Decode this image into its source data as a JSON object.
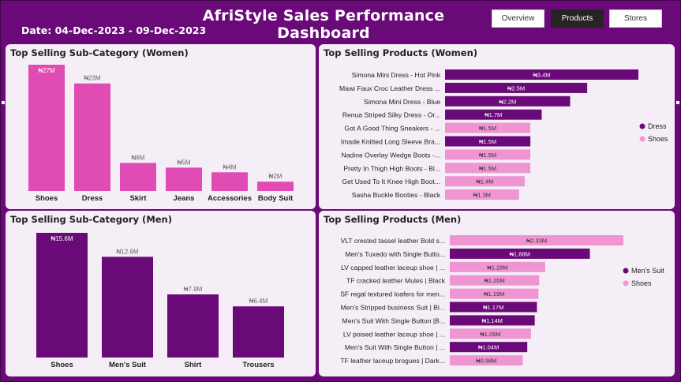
{
  "header": {
    "title": "AfriStyle Sales Performance Dashboard",
    "date_range": "Date: 04-Dec-2023 - 09-Dec-2023"
  },
  "nav": {
    "overview": "Overview",
    "products": "Products",
    "stores": "Stores"
  },
  "colors": {
    "background": "#6a0a78",
    "panel": "#f5eef7",
    "women_bar": "#e04cb4",
    "men_bar": "#6a0a78",
    "dress": "#6a0a78",
    "shoes": "#ef95d1",
    "mens_suit": "#6a0a78"
  },
  "panels": {
    "women_sub": "Top Selling Sub-Category (Women)",
    "men_sub": "Top Selling Sub-Category (Men)",
    "women_products": "Top Selling Products (Women)",
    "men_products": "Top Selling Products (Men)"
  },
  "chart_data": [
    {
      "id": "women_sub",
      "type": "bar",
      "title": "Top Selling Sub-Category (Women)",
      "categories": [
        "Shoes",
        "Dress",
        "Skirt",
        "Jeans",
        "Accessories",
        "Body Suit"
      ],
      "values": [
        27,
        23,
        6,
        5,
        4,
        2
      ],
      "labels": [
        "₦27M",
        "₦23M",
        "₦6M",
        "₦5M",
        "₦4M",
        "₦2M"
      ],
      "ylim": [
        0,
        27
      ]
    },
    {
      "id": "men_sub",
      "type": "bar",
      "title": "Top Selling Sub-Category (Men)",
      "categories": [
        "Shoes",
        "Men's Suit",
        "Shirt",
        "Trousers"
      ],
      "values": [
        15.6,
        12.6,
        7.9,
        6.4
      ],
      "labels": [
        "₦15.6M",
        "₦12.6M",
        "₦7.9M",
        "₦6.4M"
      ],
      "ylim": [
        0,
        15.6
      ]
    },
    {
      "id": "women_products",
      "type": "bar",
      "orientation": "horizontal",
      "title": "Top Selling Products (Women)",
      "categories": [
        "Simona Mini Dress - Hot Pink",
        "Mawi Faux Croc Leather Dress ...",
        "Simona Mini Dress - Blue",
        "Renua Striped Silky Dress - Or...",
        "Got A Good Thing Sneakers - ...",
        "Imade Knitted Long Sleeve Bra...",
        "Nadine Overlay Wedge Boots -...",
        "Pretty In Thigh High Boots - Bl...",
        "Get Used To It Knee High Boot...",
        "Sasha Buckle Booties - Black"
      ],
      "values": [
        3.4,
        2.5,
        2.2,
        1.7,
        1.5,
        1.5,
        1.5,
        1.5,
        1.4,
        1.3
      ],
      "labels": [
        "₦3.4M",
        "₦2.5M",
        "₦2.2M",
        "₦1.7M",
        "₦1.5M",
        "₦1.5M",
        "₦1.5M",
        "₦1.5M",
        "₦1.4M",
        "₦1.3M"
      ],
      "group": [
        "Dress",
        "Dress",
        "Dress",
        "Dress",
        "Shoes",
        "Dress",
        "Shoes",
        "Shoes",
        "Shoes",
        "Shoes"
      ],
      "legend": [
        "Dress",
        "Shoes"
      ],
      "legend_placement": "right"
    },
    {
      "id": "men_products",
      "type": "bar",
      "orientation": "horizontal",
      "title": "Top Selling Products (Men)",
      "categories": [
        "VLT crested tassel leather Bold s...",
        "Men's Tuxedo with Single Butto...",
        "LV capped leather laceup shoe | ...",
        "TF cracked leather Mules | Black",
        "SF regal textured loafers for men...",
        "Men's Stripped business Suit | Bl...",
        "Men's Suit With Single Button |B...",
        "LV poised leather laceup shoe | ...",
        "Men's Suit With Single Button | ...",
        "TF leather laceup brogues | Dark..."
      ],
      "values": [
        2.33,
        1.88,
        1.28,
        1.2,
        1.19,
        1.17,
        1.14,
        1.09,
        1.04,
        0.98
      ],
      "labels": [
        "₦2.33M",
        "₦1.88M",
        "₦1.28M",
        "₦1.20M",
        "₦1.19M",
        "₦1.17M",
        "₦1.14M",
        "₦1.09M",
        "₦1.04M",
        "₦0.98M"
      ],
      "group": [
        "Shoes",
        "Men's Suit",
        "Shoes",
        "Shoes",
        "Shoes",
        "Men's Suit",
        "Men's Suit",
        "Shoes",
        "Men's Suit",
        "Shoes"
      ],
      "legend": [
        "Men's Suit",
        "Shoes"
      ],
      "legend_placement": "right"
    }
  ]
}
